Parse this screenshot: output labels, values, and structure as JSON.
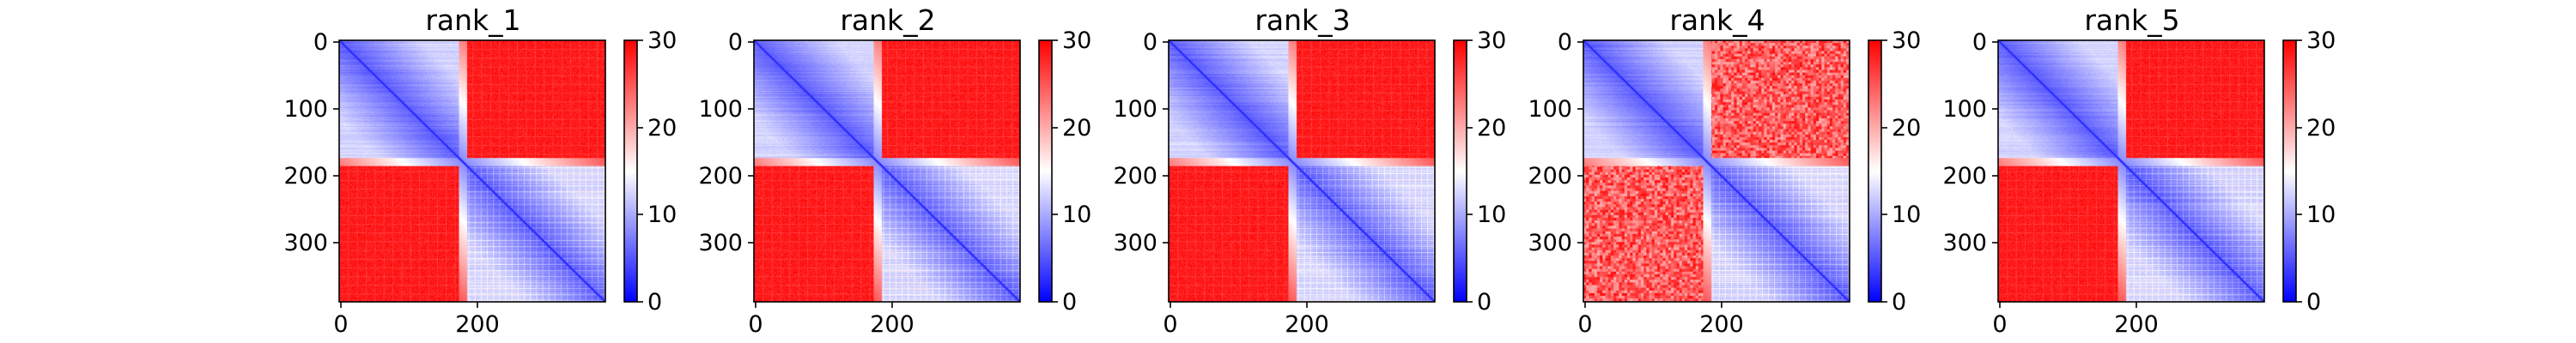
{
  "chart_data": [
    {
      "type": "heatmap",
      "title": "rank_1",
      "size": 389,
      "domain_a_end": 175,
      "domain_b_start": 187,
      "xticks": [
        0,
        200
      ],
      "xtick_labels": [
        "0",
        "200"
      ],
      "yticks": [
        0,
        100,
        200,
        300
      ],
      "ytick_labels": [
        "0",
        "100",
        "200",
        "300"
      ],
      "colorbar": {
        "min": 0,
        "max": 30,
        "ticks": [
          0,
          10,
          20,
          30
        ],
        "tick_labels": [
          "0",
          "10",
          "20",
          "30"
        ],
        "colormap": "bwr"
      }
    },
    {
      "type": "heatmap",
      "title": "rank_2",
      "size": 389,
      "domain_a_end": 175,
      "domain_b_start": 187,
      "xticks": [
        0,
        200
      ],
      "xtick_labels": [
        "0",
        "200"
      ],
      "yticks": [
        0,
        100,
        200,
        300
      ],
      "ytick_labels": [
        "0",
        "100",
        "200",
        "300"
      ],
      "colorbar": {
        "min": 0,
        "max": 30,
        "ticks": [
          0,
          10,
          20,
          30
        ],
        "tick_labels": [
          "0",
          "10",
          "20",
          "30"
        ],
        "colormap": "bwr"
      }
    },
    {
      "type": "heatmap",
      "title": "rank_3",
      "size": 389,
      "domain_a_end": 175,
      "domain_b_start": 187,
      "xticks": [
        0,
        200
      ],
      "xtick_labels": [
        "0",
        "200"
      ],
      "yticks": [
        0,
        100,
        200,
        300
      ],
      "ytick_labels": [
        "0",
        "100",
        "200",
        "300"
      ],
      "colorbar": {
        "min": 0,
        "max": 30,
        "ticks": [
          0,
          10,
          20,
          30
        ],
        "tick_labels": [
          "0",
          "10",
          "20",
          "30"
        ],
        "colormap": "bwr"
      }
    },
    {
      "type": "heatmap",
      "title": "rank_4",
      "size": 389,
      "domain_a_end": 175,
      "domain_b_start": 187,
      "xticks": [
        0,
        200
      ],
      "xtick_labels": [
        "0",
        "200"
      ],
      "yticks": [
        0,
        100,
        200,
        300
      ],
      "ytick_labels": [
        "0",
        "100",
        "200",
        "300"
      ],
      "colorbar": {
        "min": 0,
        "max": 30,
        "ticks": [
          0,
          10,
          20,
          30
        ],
        "tick_labels": [
          "0",
          "10",
          "20",
          "30"
        ],
        "colormap": "bwr"
      }
    },
    {
      "type": "heatmap",
      "title": "rank_5",
      "size": 389,
      "domain_a_end": 175,
      "domain_b_start": 187,
      "xticks": [
        0,
        200
      ],
      "xtick_labels": [
        "0",
        "200"
      ],
      "yticks": [
        0,
        100,
        200,
        300
      ],
      "ytick_labels": [
        "0",
        "100",
        "200",
        "300"
      ],
      "colorbar": {
        "min": 0,
        "max": 30,
        "ticks": [
          0,
          10,
          20,
          30
        ],
        "tick_labels": [
          "0",
          "10",
          "20",
          "30"
        ],
        "colormap": "bwr"
      }
    }
  ],
  "colors": {
    "low": "#0000ff",
    "mid": "#ffffff",
    "high": "#ff0000"
  }
}
